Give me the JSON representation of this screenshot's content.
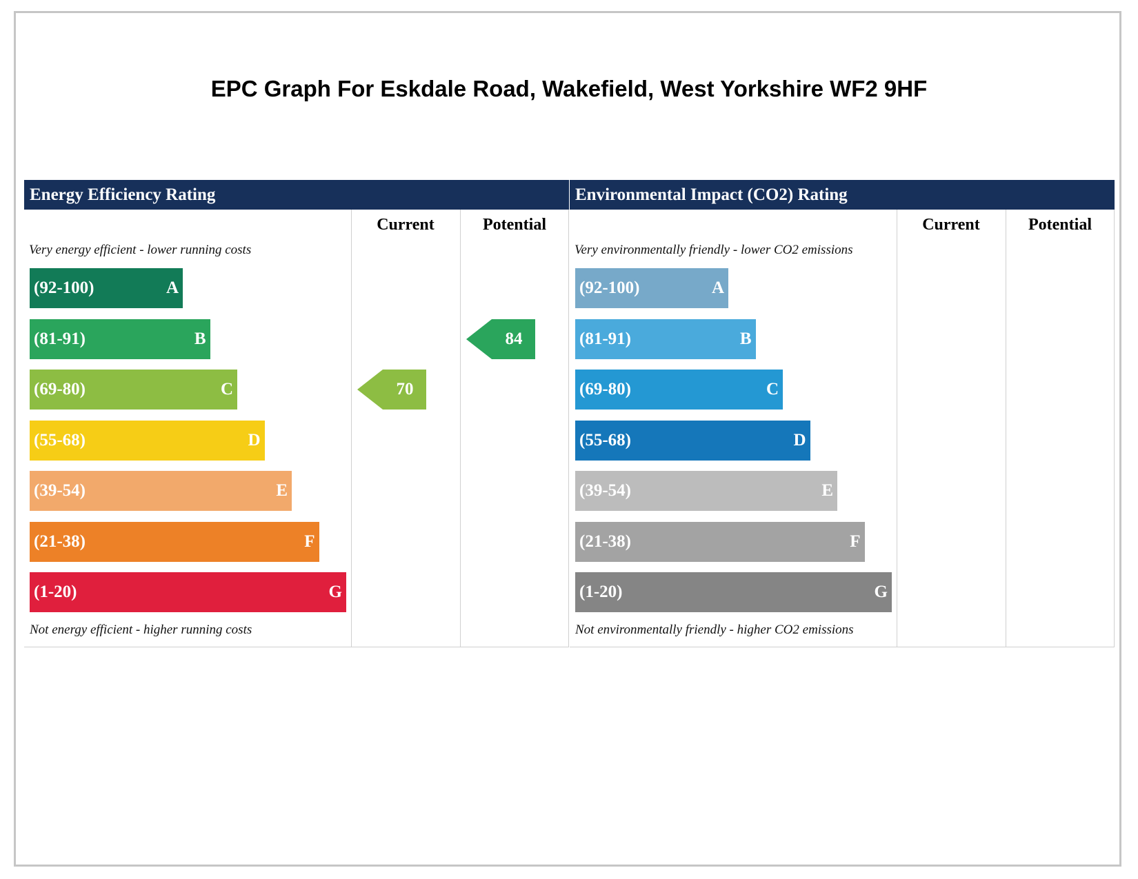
{
  "title": "EPC Graph For Eskdale Road, Wakefield, West Yorkshire WF2 9HF",
  "chart_data": [
    {
      "type": "bar",
      "title": "Energy Efficiency Rating",
      "column_headers": [
        "Current",
        "Potential"
      ],
      "top_note": "Very energy efficient - lower running costs",
      "bottom_note": "Not energy efficient - higher running costs",
      "bands": [
        {
          "range": "(92-100)",
          "letter": "A",
          "color": "#127b57"
        },
        {
          "range": "(81-91)",
          "letter": "B",
          "color": "#2aa55c"
        },
        {
          "range": "(69-80)",
          "letter": "C",
          "color": "#8dbd43"
        },
        {
          "range": "(55-68)",
          "letter": "D",
          "color": "#f6cd16"
        },
        {
          "range": "(39-54)",
          "letter": "E",
          "color": "#f2a96b"
        },
        {
          "range": "(21-38)",
          "letter": "F",
          "color": "#ed8127"
        },
        {
          "range": "(1-20)",
          "letter": "G",
          "color": "#e01f3d"
        }
      ],
      "current": {
        "value": "70",
        "band": "C",
        "color": "#8dbd43"
      },
      "potential": {
        "value": "84",
        "band": "B",
        "color": "#2aa55c"
      }
    },
    {
      "type": "bar",
      "title": "Environmental Impact (CO2) Rating",
      "column_headers": [
        "Current",
        "Potential"
      ],
      "top_note": "Very environmentally friendly - lower CO2 emissions",
      "bottom_note": "Not environmentally friendly - higher CO2 emissions",
      "bands": [
        {
          "range": "(92-100)",
          "letter": "A",
          "color": "#77a9c9"
        },
        {
          "range": "(81-91)",
          "letter": "B",
          "color": "#4aaadc"
        },
        {
          "range": "(69-80)",
          "letter": "C",
          "color": "#2498d3"
        },
        {
          "range": "(55-68)",
          "letter": "D",
          "color": "#1577ba"
        },
        {
          "range": "(39-54)",
          "letter": "E",
          "color": "#bcbcbc"
        },
        {
          "range": "(21-38)",
          "letter": "F",
          "color": "#a3a3a3"
        },
        {
          "range": "(1-20)",
          "letter": "G",
          "color": "#858585"
        }
      ],
      "current": null,
      "potential": null
    }
  ]
}
